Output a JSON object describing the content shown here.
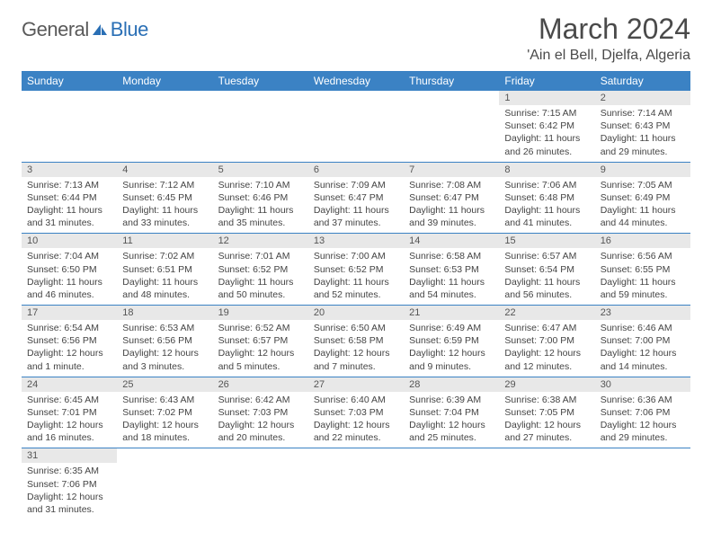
{
  "logo": {
    "part1": "General",
    "part2": "Blue"
  },
  "title": {
    "month": "March 2024",
    "location": "'Ain el Bell, Djelfa, Algeria"
  },
  "colors": {
    "header_bg": "#3b82c4",
    "header_fg": "#ffffff",
    "daynum_bg": "#e8e8e8",
    "border": "#3b82c4",
    "logo_blue": "#2a6fb5",
    "logo_grey": "#5a5a5a"
  },
  "weekdays": [
    "Sunday",
    "Monday",
    "Tuesday",
    "Wednesday",
    "Thursday",
    "Friday",
    "Saturday"
  ],
  "weeks": [
    [
      {
        "empty": true
      },
      {
        "empty": true
      },
      {
        "empty": true
      },
      {
        "empty": true
      },
      {
        "empty": true
      },
      {
        "n": "1",
        "sunrise": "7:15 AM",
        "sunset": "6:42 PM",
        "day": "11 hours and 26 minutes."
      },
      {
        "n": "2",
        "sunrise": "7:14 AM",
        "sunset": "6:43 PM",
        "day": "11 hours and 29 minutes."
      }
    ],
    [
      {
        "n": "3",
        "sunrise": "7:13 AM",
        "sunset": "6:44 PM",
        "day": "11 hours and 31 minutes."
      },
      {
        "n": "4",
        "sunrise": "7:12 AM",
        "sunset": "6:45 PM",
        "day": "11 hours and 33 minutes."
      },
      {
        "n": "5",
        "sunrise": "7:10 AM",
        "sunset": "6:46 PM",
        "day": "11 hours and 35 minutes."
      },
      {
        "n": "6",
        "sunrise": "7:09 AM",
        "sunset": "6:47 PM",
        "day": "11 hours and 37 minutes."
      },
      {
        "n": "7",
        "sunrise": "7:08 AM",
        "sunset": "6:47 PM",
        "day": "11 hours and 39 minutes."
      },
      {
        "n": "8",
        "sunrise": "7:06 AM",
        "sunset": "6:48 PM",
        "day": "11 hours and 41 minutes."
      },
      {
        "n": "9",
        "sunrise": "7:05 AM",
        "sunset": "6:49 PM",
        "day": "11 hours and 44 minutes."
      }
    ],
    [
      {
        "n": "10",
        "sunrise": "7:04 AM",
        "sunset": "6:50 PM",
        "day": "11 hours and 46 minutes."
      },
      {
        "n": "11",
        "sunrise": "7:02 AM",
        "sunset": "6:51 PM",
        "day": "11 hours and 48 minutes."
      },
      {
        "n": "12",
        "sunrise": "7:01 AM",
        "sunset": "6:52 PM",
        "day": "11 hours and 50 minutes."
      },
      {
        "n": "13",
        "sunrise": "7:00 AM",
        "sunset": "6:52 PM",
        "day": "11 hours and 52 minutes."
      },
      {
        "n": "14",
        "sunrise": "6:58 AM",
        "sunset": "6:53 PM",
        "day": "11 hours and 54 minutes."
      },
      {
        "n": "15",
        "sunrise": "6:57 AM",
        "sunset": "6:54 PM",
        "day": "11 hours and 56 minutes."
      },
      {
        "n": "16",
        "sunrise": "6:56 AM",
        "sunset": "6:55 PM",
        "day": "11 hours and 59 minutes."
      }
    ],
    [
      {
        "n": "17",
        "sunrise": "6:54 AM",
        "sunset": "6:56 PM",
        "day": "12 hours and 1 minute."
      },
      {
        "n": "18",
        "sunrise": "6:53 AM",
        "sunset": "6:56 PM",
        "day": "12 hours and 3 minutes."
      },
      {
        "n": "19",
        "sunrise": "6:52 AM",
        "sunset": "6:57 PM",
        "day": "12 hours and 5 minutes."
      },
      {
        "n": "20",
        "sunrise": "6:50 AM",
        "sunset": "6:58 PM",
        "day": "12 hours and 7 minutes."
      },
      {
        "n": "21",
        "sunrise": "6:49 AM",
        "sunset": "6:59 PM",
        "day": "12 hours and 9 minutes."
      },
      {
        "n": "22",
        "sunrise": "6:47 AM",
        "sunset": "7:00 PM",
        "day": "12 hours and 12 minutes."
      },
      {
        "n": "23",
        "sunrise": "6:46 AM",
        "sunset": "7:00 PM",
        "day": "12 hours and 14 minutes."
      }
    ],
    [
      {
        "n": "24",
        "sunrise": "6:45 AM",
        "sunset": "7:01 PM",
        "day": "12 hours and 16 minutes."
      },
      {
        "n": "25",
        "sunrise": "6:43 AM",
        "sunset": "7:02 PM",
        "day": "12 hours and 18 minutes."
      },
      {
        "n": "26",
        "sunrise": "6:42 AM",
        "sunset": "7:03 PM",
        "day": "12 hours and 20 minutes."
      },
      {
        "n": "27",
        "sunrise": "6:40 AM",
        "sunset": "7:03 PM",
        "day": "12 hours and 22 minutes."
      },
      {
        "n": "28",
        "sunrise": "6:39 AM",
        "sunset": "7:04 PM",
        "day": "12 hours and 25 minutes."
      },
      {
        "n": "29",
        "sunrise": "6:38 AM",
        "sunset": "7:05 PM",
        "day": "12 hours and 27 minutes."
      },
      {
        "n": "30",
        "sunrise": "6:36 AM",
        "sunset": "7:06 PM",
        "day": "12 hours and 29 minutes."
      }
    ],
    [
      {
        "n": "31",
        "sunrise": "6:35 AM",
        "sunset": "7:06 PM",
        "day": "12 hours and 31 minutes."
      },
      {
        "empty": true
      },
      {
        "empty": true
      },
      {
        "empty": true
      },
      {
        "empty": true
      },
      {
        "empty": true
      },
      {
        "empty": true
      }
    ]
  ],
  "labels": {
    "sunrise": "Sunrise: ",
    "sunset": "Sunset: ",
    "daylight": "Daylight: "
  }
}
